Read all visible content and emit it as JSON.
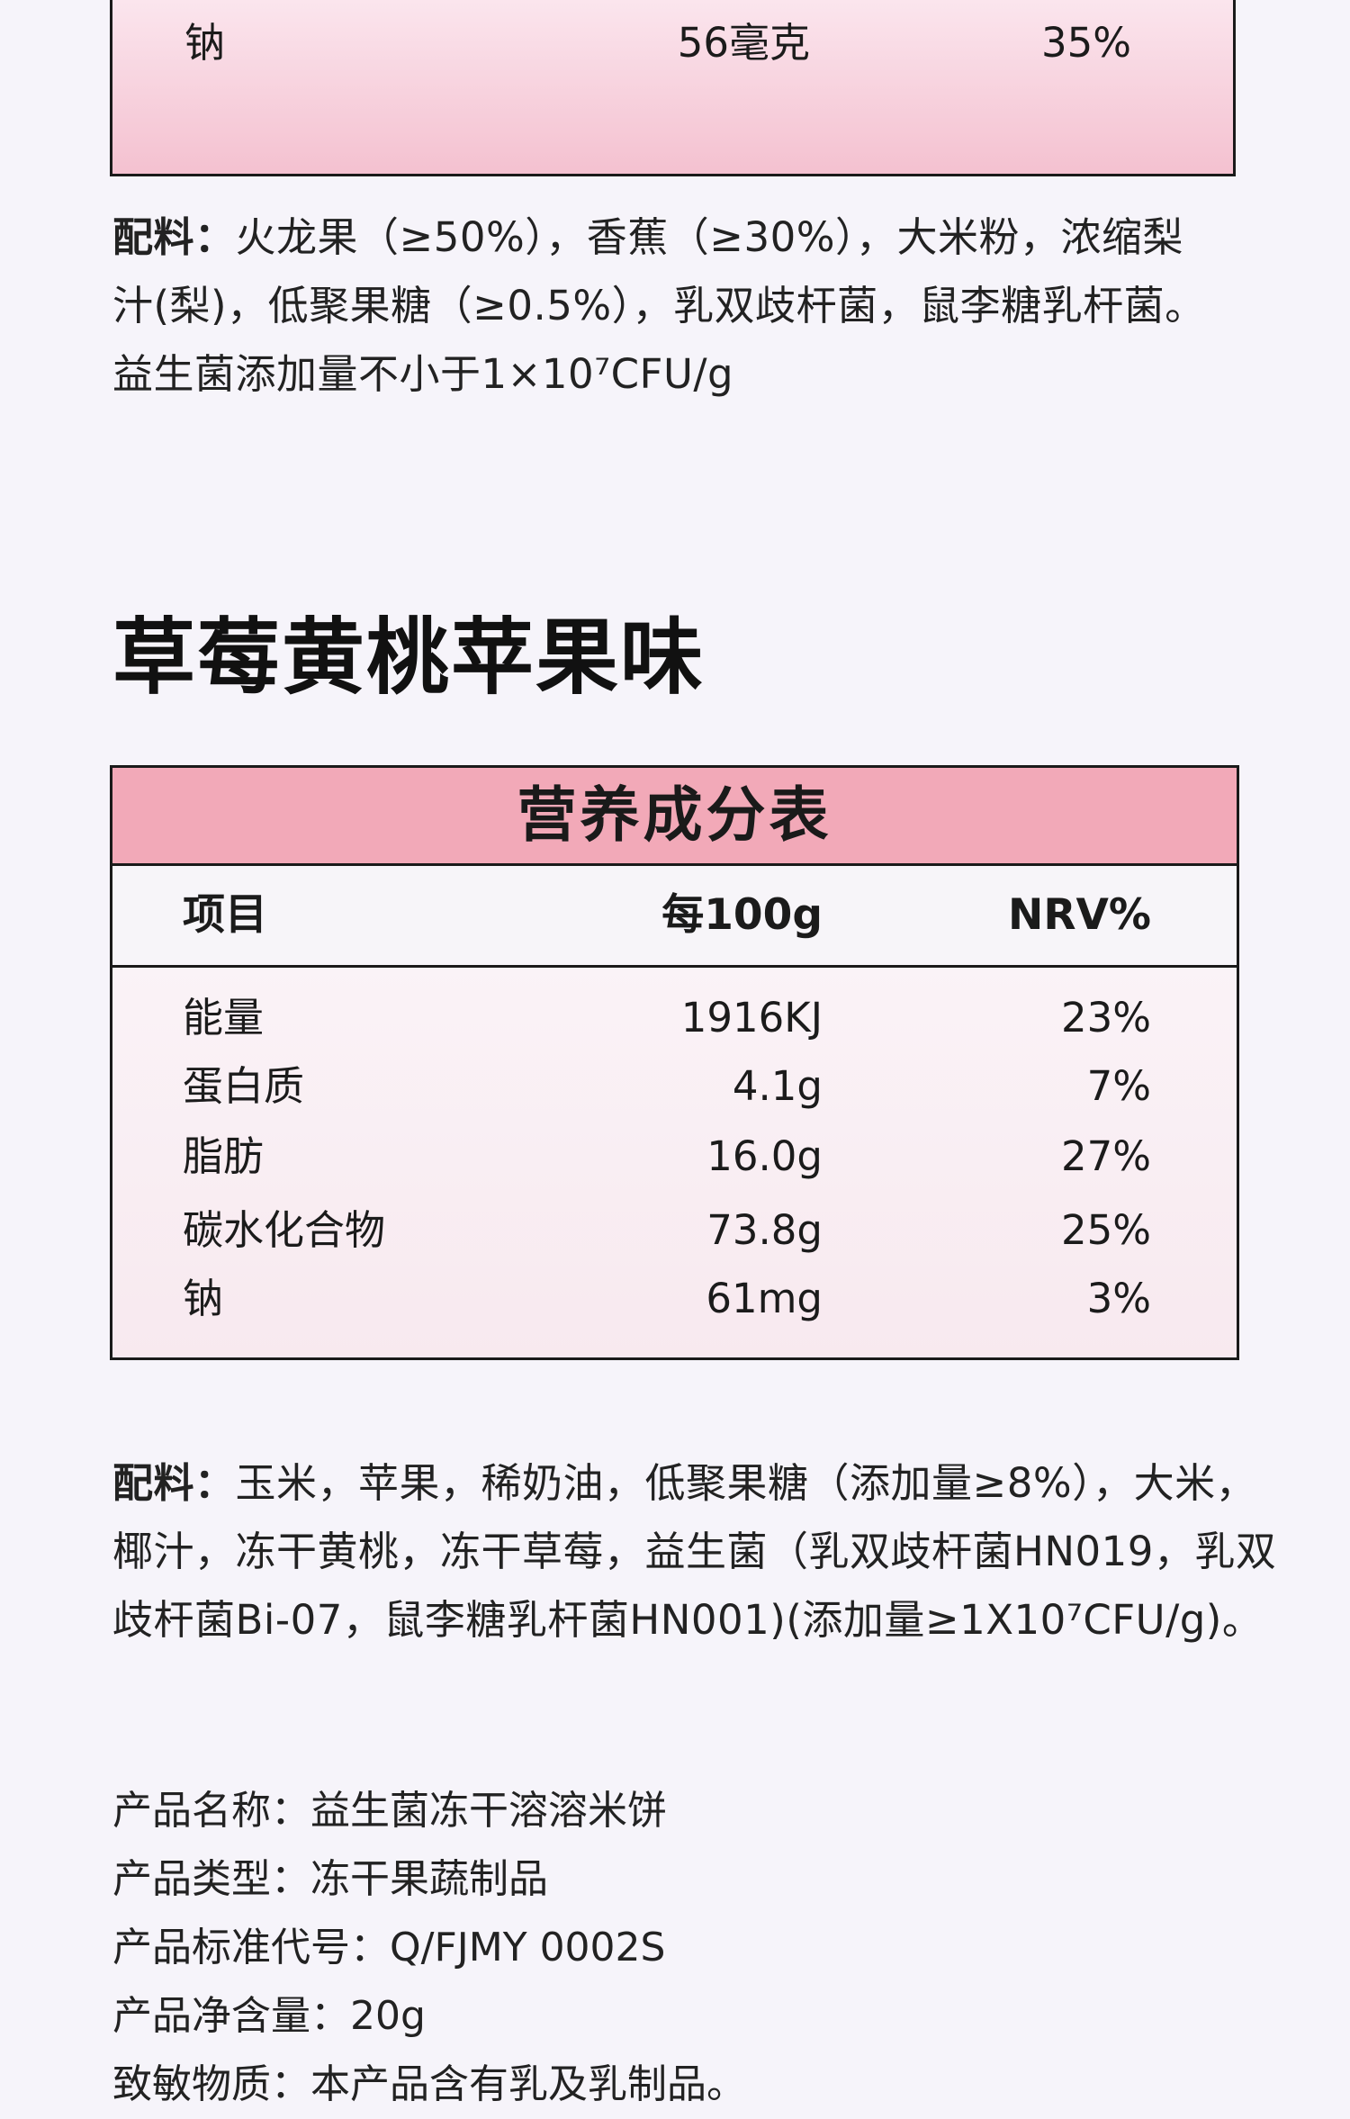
{
  "top_table": {
    "row": {
      "name": "钠",
      "value": "56毫克",
      "nrv": "35%"
    }
  },
  "ingredients_1": {
    "label": "配料：",
    "lines": [
      "火龙果（≥50%），香蕉（≥30%），大米粉，浓缩梨",
      "汁(梨)，低聚果糖（≥0.5%），乳双歧杆菌，鼠李糖乳杆菌。",
      "益生菌添加量不小于1×10⁷CFU/g"
    ]
  },
  "section": {
    "title": "草莓黄桃苹果味"
  },
  "nutrition_table": {
    "title": "营养成分表",
    "headers": {
      "name": "项目",
      "value": "每100g",
      "nrv": "NRV%"
    },
    "rows": [
      {
        "name": "能量",
        "value": "1916KJ",
        "nrv": "23%"
      },
      {
        "name": "蛋白质",
        "value": "4.1g",
        "nrv": "7%"
      },
      {
        "name": "脂肪",
        "value": "16.0g",
        "nrv": "27%"
      },
      {
        "name": "碳水化合物",
        "value": "73.8g",
        "nrv": "25%"
      },
      {
        "name": "钠",
        "value": "61mg",
        "nrv": "3%"
      }
    ]
  },
  "ingredients_2": {
    "label": "配料：",
    "lines": [
      "玉米，苹果，稀奶油，低聚果糖（添加量≥8%），大米，",
      "椰汁，冻干黄桃，冻干草莓，益生菌（乳双歧杆菌HN019，乳双",
      "歧杆菌Bi-07，鼠李糖乳杆菌HN001)(添加量≥1X10⁷CFU/g)。"
    ]
  },
  "product_info": [
    "产品名称：益生菌冻干溶溶米饼",
    "产品类型：冻干果蔬制品",
    "产品标准代号：Q/FJMY 0002S",
    "产品净含量：20g",
    "致敏物质：本产品含有乳及乳制品。"
  ],
  "colors": {
    "table_title_bg": "#f2a9b8",
    "top_table_gradient_end": "#f4c1d0",
    "page_bg": "#f6f4fa"
  }
}
